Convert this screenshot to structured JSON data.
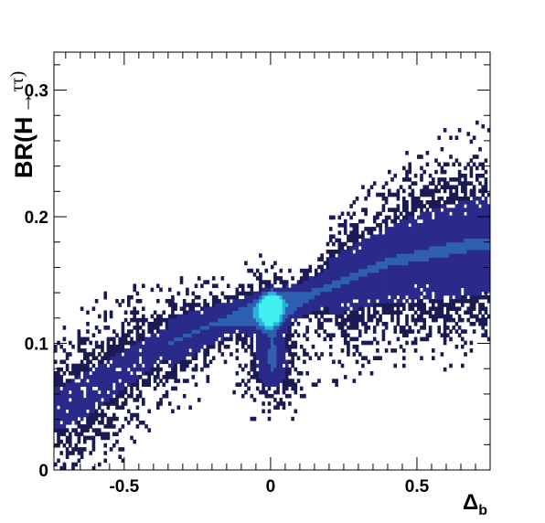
{
  "chart_data": {
    "type": "heatmap",
    "title": "",
    "xlabel": "Δ",
    "xlabel_sub": "b",
    "ylabel": "BR(H",
    "ylabel_arrow": "→",
    "ylabel_tail": "ττ)",
    "xlim": [
      -0.74,
      0.75
    ],
    "ylim": [
      0,
      0.33
    ],
    "xticks": [
      {
        "value": -0.5,
        "label": "-0.5"
      },
      {
        "value": 0,
        "label": "0"
      },
      {
        "value": 0.5,
        "label": "0.5"
      }
    ],
    "yticks": [
      {
        "value": 0,
        "label": "0"
      },
      {
        "value": 0.1,
        "label": "0.1"
      },
      {
        "value": 0.2,
        "label": "0.2"
      },
      {
        "value": 0.3,
        "label": "0.3"
      }
    ],
    "grid": false,
    "colormap": [
      "#ffffff",
      "#1a1a55",
      "#2a2a8a",
      "#2e5fb0",
      "#27b6d8",
      "#43f0f0"
    ],
    "density_regions": [
      {
        "x": -0.7,
        "y": 0.05,
        "level": 0.15
      },
      {
        "x": -0.6,
        "y": 0.065,
        "level": 0.2
      },
      {
        "x": -0.5,
        "y": 0.08,
        "level": 0.25
      },
      {
        "x": -0.4,
        "y": 0.095,
        "level": 0.3
      },
      {
        "x": -0.3,
        "y": 0.105,
        "level": 0.35
      },
      {
        "x": -0.2,
        "y": 0.115,
        "level": 0.4
      },
      {
        "x": -0.1,
        "y": 0.122,
        "level": 0.55
      },
      {
        "x": 0.0,
        "y": 0.127,
        "level": 1.0
      },
      {
        "x": 0.0,
        "y": 0.08,
        "level": 0.4
      },
      {
        "x": 0.1,
        "y": 0.135,
        "level": 0.45
      },
      {
        "x": 0.2,
        "y": 0.145,
        "level": 0.4
      },
      {
        "x": 0.3,
        "y": 0.155,
        "level": 0.35
      },
      {
        "x": 0.4,
        "y": 0.165,
        "level": 0.3
      },
      {
        "x": 0.5,
        "y": 0.17,
        "level": 0.3
      },
      {
        "x": 0.6,
        "y": 0.175,
        "level": 0.3
      },
      {
        "x": 0.7,
        "y": 0.18,
        "level": 0.25
      }
    ]
  }
}
